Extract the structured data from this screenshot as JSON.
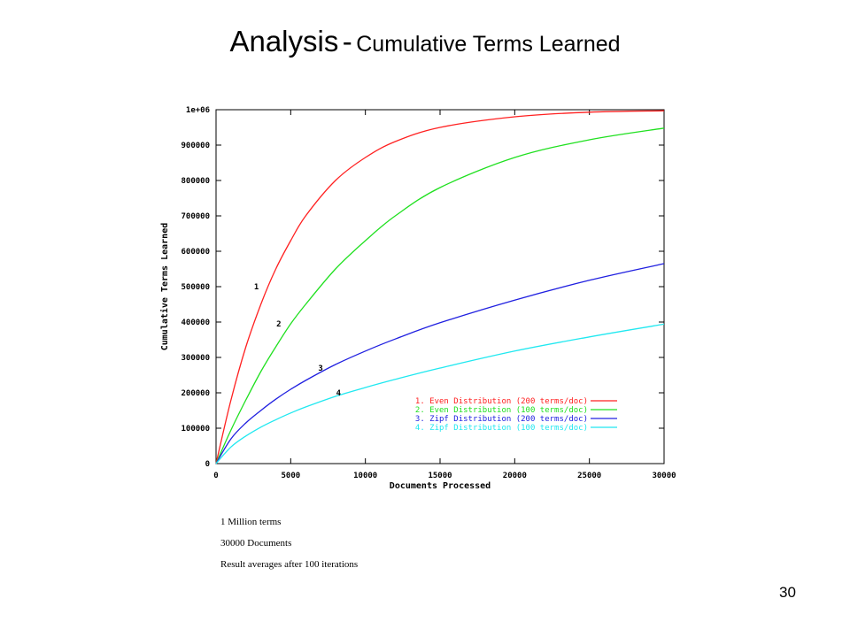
{
  "slide": {
    "title_main": "Analysis",
    "title_sep": "-",
    "title_sub": "Cumulative Terms Learned",
    "notes": [
      "1 Million terms",
      "30000 Documents",
      "Result averages after 100 iterations"
    ],
    "page_number": "30"
  },
  "chart_data": {
    "type": "line",
    "title": "",
    "xlabel": "Documents Processed",
    "ylabel": "Cumulative Terms Learned",
    "xlim": [
      0,
      30000
    ],
    "ylim": [
      0,
      1000000
    ],
    "x_ticks": [
      0,
      5000,
      10000,
      15000,
      20000,
      25000,
      30000
    ],
    "x_tick_labels": [
      "0",
      "5000",
      "10000",
      "15000",
      "20000",
      "25000",
      "30000"
    ],
    "y_ticks": [
      0,
      100000,
      200000,
      300000,
      400000,
      500000,
      600000,
      700000,
      800000,
      900000,
      1000000
    ],
    "y_tick_labels": [
      "0",
      "100000",
      "200000",
      "300000",
      "400000",
      "500000",
      "600000",
      "700000",
      "800000",
      "900000",
      "1e+06"
    ],
    "grid": false,
    "legend_position": "bottom-right",
    "x": [
      0,
      1000,
      2000,
      3000,
      4000,
      5000,
      6000,
      8000,
      10000,
      12000,
      15000,
      20000,
      25000,
      30000
    ],
    "series": [
      {
        "name": "1. Even Distribution (200 terms/doc)",
        "label": "1",
        "color": "#ff2020",
        "label_x": 2700,
        "label_y": 500000,
        "values": [
          0,
          180000,
          330000,
          450000,
          550000,
          630000,
          700000,
          800000,
          865000,
          910000,
          950000,
          980000,
          993000,
          997000
        ]
      },
      {
        "name": "2. Even Distribution (100 terms/doc)",
        "label": "2",
        "color": "#20e020",
        "label_x": 4200,
        "label_y": 395000,
        "values": [
          0,
          95000,
          180000,
          260000,
          330000,
          395000,
          450000,
          550000,
          630000,
          700000,
          780000,
          865000,
          915000,
          948000
        ]
      },
      {
        "name": "3. Zipf Distribution (200 terms/doc)",
        "label": "3",
        "color": "#2020e0",
        "label_x": 7000,
        "label_y": 270000,
        "values": [
          0,
          70000,
          115000,
          150000,
          182000,
          210000,
          235000,
          280000,
          318000,
          352000,
          398000,
          462000,
          518000,
          565000
        ]
      },
      {
        "name": "4. Zipf Distribution (100 terms/doc)",
        "label": "4",
        "color": "#20e8f0",
        "label_x": 8200,
        "label_y": 200000,
        "values": [
          0,
          47000,
          78000,
          103000,
          124000,
          143000,
          160000,
          190000,
          215000,
          238000,
          270000,
          318000,
          358000,
          394000
        ]
      }
    ]
  }
}
